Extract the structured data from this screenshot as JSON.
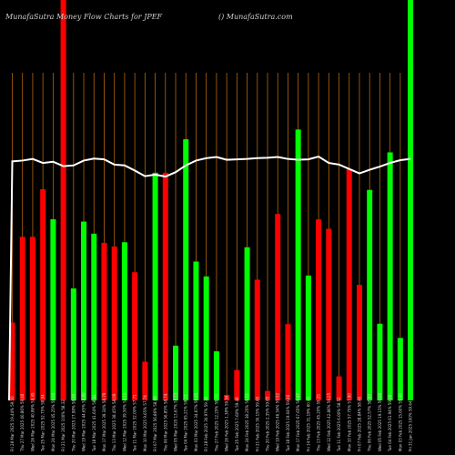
{
  "chart_data": {
    "type": "bar",
    "title": "MunafaSutra  Money Flow  Charts for JPEF",
    "watermark": "() MunafaSutra.com",
    "colors": {
      "up": "#00ff00",
      "down": "#ff0000",
      "line": "#ffffff",
      "grid": "#b8660b",
      "background": "#000000"
    },
    "ylim": [
      0,
      100
    ],
    "categories": [
      "Fri 28 Mar 2025 19.44% 59.50",
      "Thu 27 Mar 2025 40.86% 59.48",
      "Wed 26 Mar 2025 40.86% 59.45",
      "Tue 25 Mar 2025 52.75% 58.94",
      "Mon 24 Mar 2025 45.25% 59.04",
      "Fri 21 Mar 2025 100% 58.32",
      "Thu 20 Mar 2025 27.98% 58.65",
      "Wed 19 Mar 2025 44.65% 58.80",
      "Tue 18 Mar 2025 41.64% 58.84",
      "Mon 17 Mar 2025 39.34% 58.79",
      "Thu 13 Mar 2025 38.45% 58.09",
      "Wed 12 Mar 2025 39.50% 58.15",
      "Tue 11 Mar 2025 32.00% 57.71",
      "Mon 10 Mar 2025 9.65% 57.74",
      "Fri 07 Mar 2025 56.86% 58.68",
      "Thu 06 Mar 2025 56.85% 58.74",
      "Wed 05 Mar 2025 13.67% 58.15",
      "Tue 04 Mar 2025 65.21% 59.13",
      "Mon 03 Mar 2025 34.67% 59.45",
      "Fri 28 Feb 2025 30.97% 59.39",
      "Thu 27 Feb 2025 12.25% 59.78",
      "Wed 26 Feb 2025 1.38% 59.94",
      "Tue 25 Feb 2025 7.60% 59.48",
      "Mon 24 Feb 2025 38.25% 59.52",
      "Fri 21 Feb 2025 30.15% 59.60",
      "Thu 20 Feb 2025 2.35% 59.65",
      "Wed 19 Feb 2025 46.54% 59.92",
      "Tue 18 Feb 2025 19.04% 59.46",
      "Mon 17 Feb 2025 67.65% 59.47",
      "Fri 14 Feb 2025 31.19% 60.09",
      "Thu 13 Feb 2025 45.20% 59.35",
      "Wed 12 Feb 2025 42.86% 59.25",
      "Tue 11 Feb 2025 6.00% 58.52",
      "Mon 10 Feb 2025 57.75% 57.90",
      "Fri 07 Feb 2025 28.84% 58.46",
      "Thu 06 Feb 2025 52.57% 58.83",
      "Wed 05 Feb 2025 19.15% 59.06",
      "Tue 04 Feb 2025 61.94% 59.16",
      "Mon 03 Feb 2025 15.60% 59.46",
      "Fri 31 Jan 2025 100% 59.64"
    ],
    "series": [
      {
        "values": [
          19.44,
          40.86,
          40.86,
          52.75,
          45.25,
          100,
          27.98,
          44.65,
          41.64,
          39.34,
          38.45,
          39.5,
          32.0,
          9.65,
          56.86,
          56.85,
          13.67,
          65.21,
          34.67,
          30.97,
          12.25,
          1.38,
          7.6,
          38.25,
          30.15,
          2.35,
          46.54,
          19.04,
          67.65,
          31.19,
          45.2,
          42.86,
          6.0,
          57.75,
          28.84,
          52.57,
          19.15,
          61.94,
          15.6,
          100
        ],
        "directions": [
          "down",
          "down",
          "down",
          "down",
          "up",
          "down",
          "up",
          "up",
          "up",
          "down",
          "down",
          "up",
          "down",
          "down",
          "up",
          "down",
          "up",
          "up",
          "up",
          "up",
          "up",
          "down",
          "down",
          "up",
          "down",
          "down",
          "down",
          "down",
          "up",
          "up",
          "down",
          "down",
          "down",
          "down",
          "down",
          "up",
          "up",
          "up",
          "up",
          "up"
        ]
      }
    ],
    "line": [
      59.7,
      59.9,
      60.3,
      59.3,
      59.6,
      58.5,
      58.7,
      59.9,
      60.4,
      60.2,
      58.9,
      58.7,
      57.4,
      56.0,
      56.4,
      55.9,
      57.0,
      58.7,
      59.9,
      60.5,
      60.8,
      60.1,
      60.2,
      60.3,
      60.5,
      60.6,
      60.8,
      60.3,
      60.1,
      60.2,
      60.9,
      59.3,
      58.9,
      57.8,
      56.7,
      57.6,
      58.4,
      59.3,
      60.0,
      60.3
    ]
  }
}
